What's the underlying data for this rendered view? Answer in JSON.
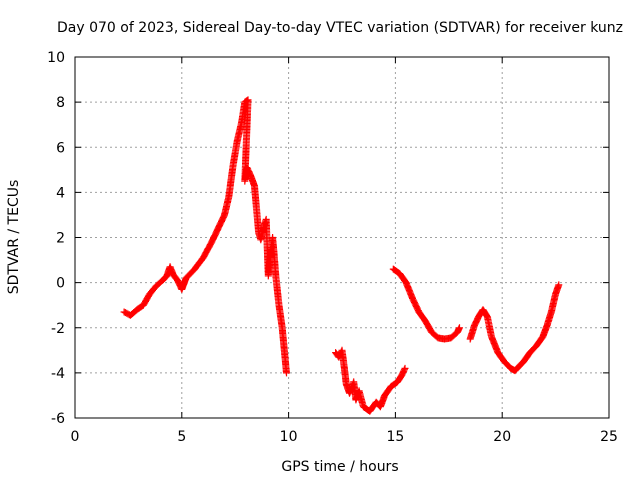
{
  "chart_data": {
    "type": "scatter",
    "title": "Day 070 of 2023, Sidereal Day-to-day VTEC variation (SDTVAR) for receiver kunz",
    "xlabel": "GPS time / hours",
    "ylabel": "SDTVAR / TECUs",
    "xlim": [
      0,
      25
    ],
    "ylim": [
      -6,
      10
    ],
    "xticks": [
      0,
      5,
      10,
      15,
      20,
      25
    ],
    "yticks": [
      -6,
      -4,
      -2,
      0,
      2,
      4,
      6,
      8,
      10
    ],
    "grid": true,
    "marker": "plus",
    "color": "#ff0000",
    "series": [
      {
        "name": "SDTVAR",
        "segments": [
          [
            [
              2.3,
              -1.3
            ],
            [
              2.6,
              -1.45
            ],
            [
              2.9,
              -1.2
            ],
            [
              3.2,
              -1.0
            ],
            [
              3.5,
              -0.5
            ],
            [
              3.8,
              -0.15
            ],
            [
              4.1,
              0.1
            ],
            [
              4.3,
              0.3
            ],
            [
              4.45,
              0.7
            ],
            [
              4.6,
              0.35
            ],
            [
              4.8,
              0.1
            ],
            [
              5.0,
              -0.3
            ],
            [
              5.2,
              0.2
            ],
            [
              5.6,
              0.6
            ],
            [
              6.0,
              1.1
            ],
            [
              6.4,
              1.8
            ],
            [
              6.8,
              2.6
            ],
            [
              7.0,
              3.0
            ],
            [
              7.2,
              3.8
            ],
            [
              7.4,
              5.2
            ],
            [
              7.6,
              6.3
            ],
            [
              7.8,
              7.1
            ],
            [
              7.95,
              8.0
            ],
            [
              8.1,
              8.1
            ],
            [
              7.95,
              4.5
            ],
            [
              8.05,
              5.1
            ],
            [
              8.2,
              4.8
            ],
            [
              8.4,
              4.3
            ],
            [
              8.6,
              2.2
            ],
            [
              8.7,
              1.9
            ],
            [
              8.85,
              2.5
            ],
            [
              8.95,
              2.8
            ],
            [
              9.05,
              0.3
            ],
            [
              9.15,
              1.3
            ],
            [
              9.25,
              2.0
            ],
            [
              9.3,
              1.5
            ],
            [
              9.4,
              0.3
            ],
            [
              9.55,
              -1.0
            ],
            [
              9.7,
              -2.0
            ],
            [
              9.8,
              -3.0
            ],
            [
              9.9,
              -4.0
            ]
          ],
          [
            [
              12.2,
              -3.1
            ],
            [
              12.35,
              -3.3
            ],
            [
              12.5,
              -3.0
            ],
            [
              12.6,
              -3.7
            ],
            [
              12.7,
              -4.5
            ],
            [
              12.85,
              -4.9
            ],
            [
              12.95,
              -4.7
            ],
            [
              13.05,
              -4.4
            ],
            [
              13.15,
              -5.2
            ],
            [
              13.3,
              -4.8
            ],
            [
              13.5,
              -5.5
            ],
            [
              13.8,
              -5.7
            ],
            [
              14.1,
              -5.3
            ],
            [
              14.3,
              -5.5
            ],
            [
              14.5,
              -5.0
            ],
            [
              14.8,
              -4.6
            ],
            [
              15.1,
              -4.4
            ],
            [
              15.3,
              -4.1
            ],
            [
              15.45,
              -3.8
            ]
          ],
          [
            [
              14.9,
              0.6
            ],
            [
              15.2,
              0.4
            ],
            [
              15.5,
              0.0
            ],
            [
              15.8,
              -0.7
            ],
            [
              16.1,
              -1.3
            ],
            [
              16.4,
              -1.7
            ],
            [
              16.7,
              -2.2
            ],
            [
              17.0,
              -2.45
            ],
            [
              17.3,
              -2.5
            ],
            [
              17.6,
              -2.45
            ],
            [
              17.9,
              -2.2
            ],
            [
              18.0,
              -2.0
            ]
          ],
          [
            [
              18.5,
              -2.5
            ],
            [
              18.7,
              -1.9
            ],
            [
              18.9,
              -1.5
            ],
            [
              19.1,
              -1.2
            ],
            [
              19.3,
              -1.5
            ],
            [
              19.5,
              -2.4
            ],
            [
              19.8,
              -3.1
            ],
            [
              20.1,
              -3.5
            ],
            [
              20.4,
              -3.8
            ],
            [
              20.6,
              -3.9
            ],
            [
              20.8,
              -3.7
            ],
            [
              21.0,
              -3.5
            ],
            [
              21.3,
              -3.1
            ],
            [
              21.6,
              -2.8
            ],
            [
              21.9,
              -2.4
            ],
            [
              22.1,
              -1.9
            ],
            [
              22.3,
              -1.3
            ],
            [
              22.5,
              -0.5
            ],
            [
              22.65,
              -0.1
            ]
          ]
        ]
      }
    ]
  }
}
